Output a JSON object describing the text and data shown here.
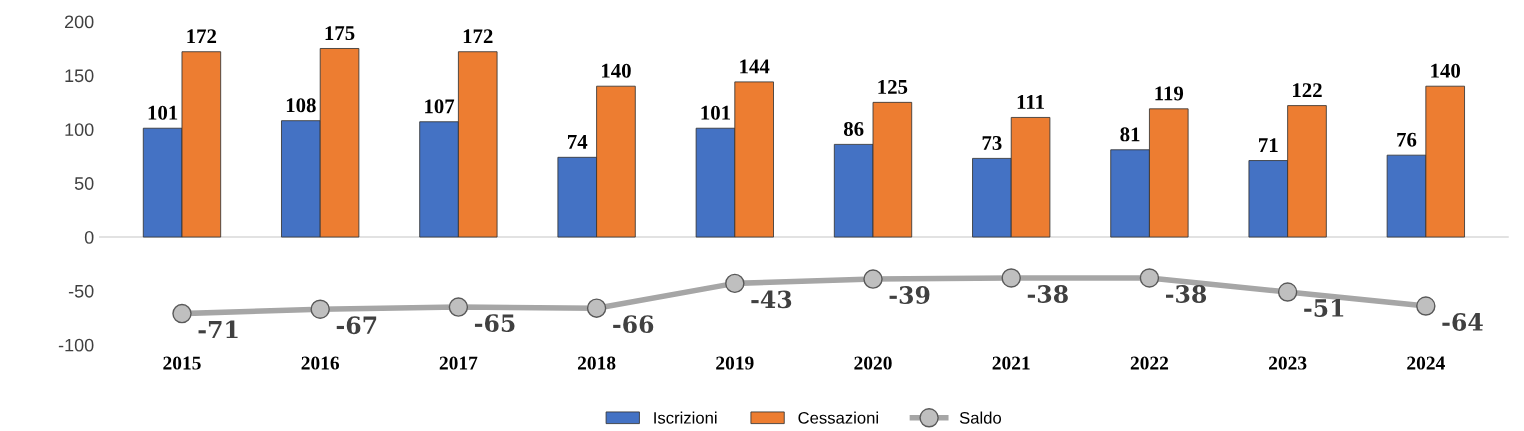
{
  "chart_data": {
    "type": "bar",
    "categories": [
      "2015",
      "2016",
      "2017",
      "2018",
      "2019",
      "2020",
      "2021",
      "2022",
      "2023",
      "2024"
    ],
    "series": [
      {
        "name": "Iscrizioni",
        "color": "#4472c4",
        "values": [
          101,
          108,
          107,
          74,
          101,
          86,
          73,
          81,
          71,
          76
        ]
      },
      {
        "name": "Cessazioni",
        "color": "#ed7d31",
        "values": [
          172,
          175,
          172,
          140,
          144,
          125,
          111,
          119,
          122,
          140
        ]
      },
      {
        "name": "Saldo",
        "color": "#a6a6a6",
        "type": "line",
        "marker": "circle",
        "values": [
          -71,
          -67,
          -65,
          -66,
          -43,
          -39,
          -38,
          -38,
          -51,
          -64
        ]
      }
    ],
    "ylim": [
      -100,
      200
    ],
    "yticks": [
      -100,
      -50,
      0,
      50,
      100,
      150,
      200
    ],
    "ref_lines": [
      {
        "axis": "y",
        "value": 0,
        "color": "#d9d9d9"
      }
    ],
    "data_labels": true,
    "legend": "bottom",
    "grid": false
  }
}
